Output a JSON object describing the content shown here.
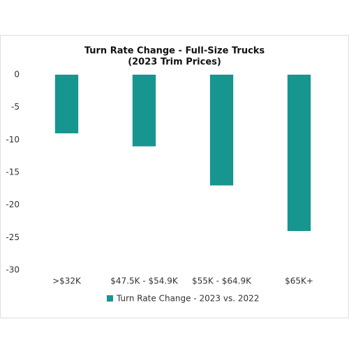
{
  "chart_data": {
    "type": "bar",
    "title": [
      "Turn Rate Change - Full-Size Trucks",
      "(2023 Trim Prices)"
    ],
    "categories": [
      ">$32K",
      "$47.5K - $54.9K",
      "$55K - $64.9K",
      "$65K+"
    ],
    "series": [
      {
        "name": "Turn Rate Change - 2023 vs. 2022",
        "color": "#17958f",
        "values": [
          -9,
          -11,
          -17,
          -24
        ]
      }
    ],
    "ylim": [
      -30,
      0
    ],
    "yticks": [
      0,
      -5,
      -10,
      -15,
      -20,
      -25,
      -30
    ],
    "grid": false,
    "legend": "bottom"
  }
}
